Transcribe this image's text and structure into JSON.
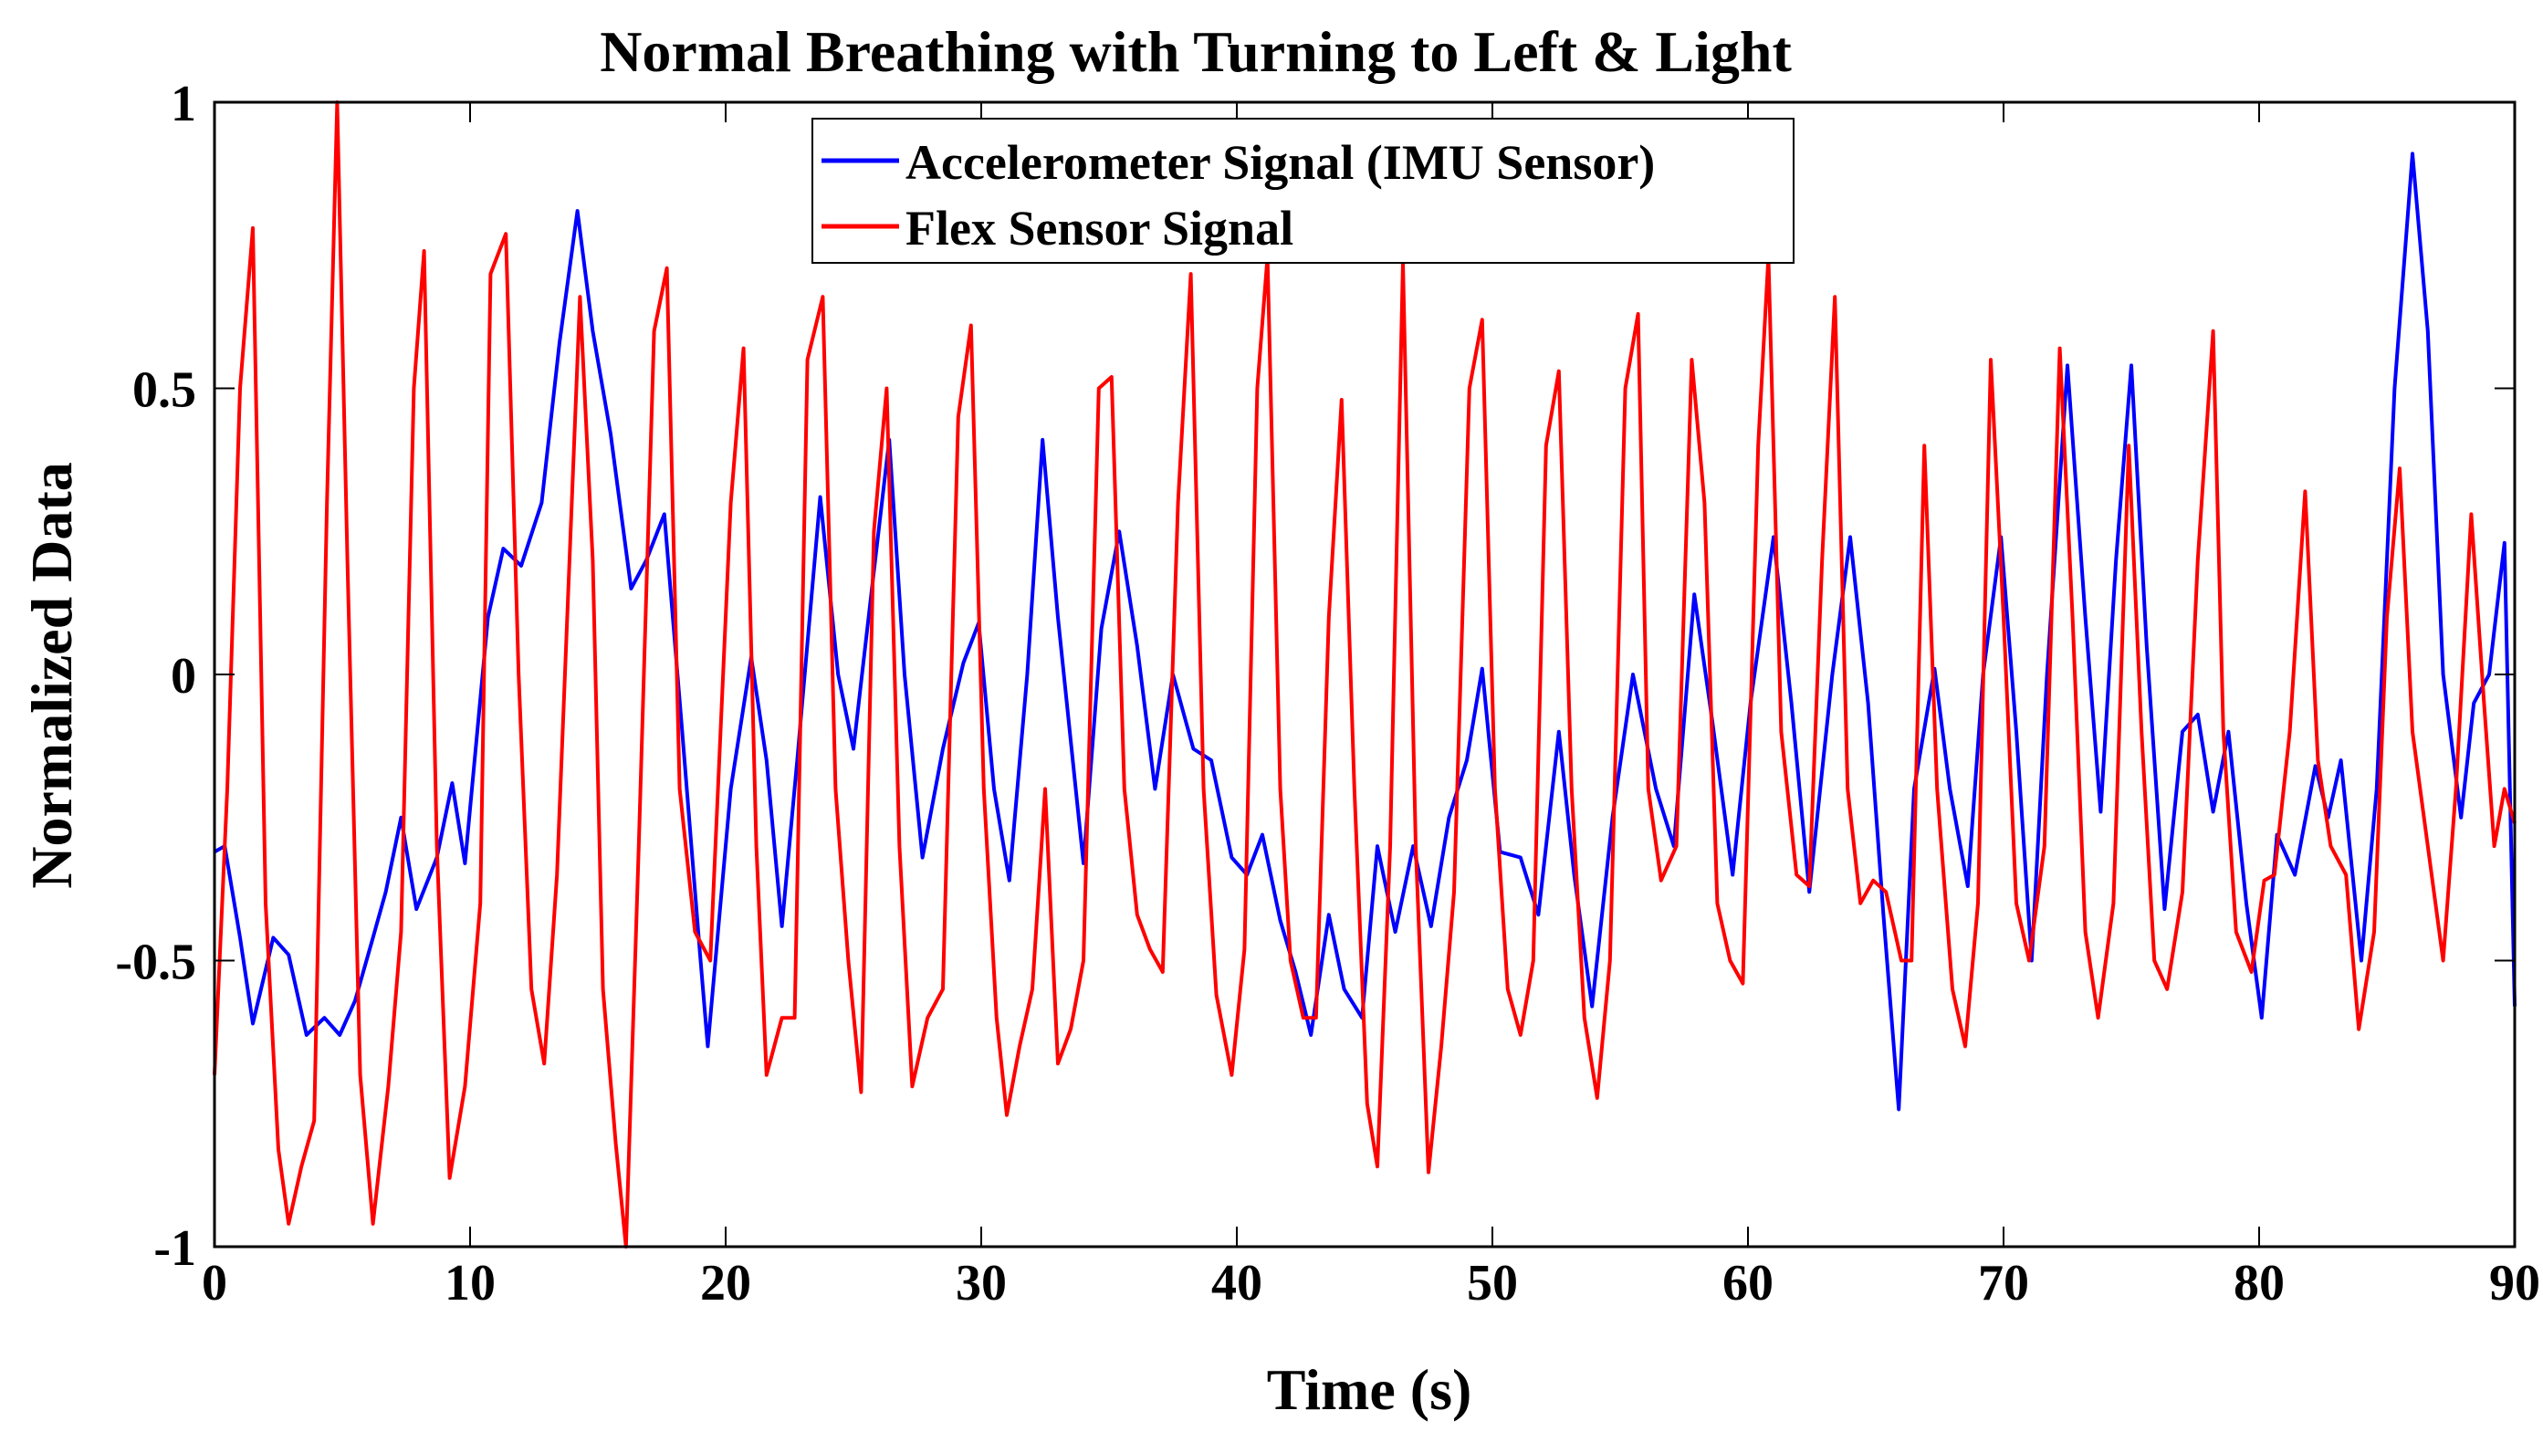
{
  "chart_data": {
    "type": "line",
    "title": "Normal Breathing with Turning to Left & Light",
    "xlabel": "Time (s)",
    "ylabel": "Normalized Data",
    "xlim": [
      0,
      90
    ],
    "ylim": [
      -1,
      1
    ],
    "xticks": [
      0,
      10,
      20,
      30,
      40,
      50,
      60,
      70,
      80,
      90
    ],
    "xtick_labels": [
      "0",
      "10",
      "20",
      "30",
      "40",
      "50",
      "60",
      "70",
      "80",
      "90"
    ],
    "yticks": [
      -1,
      -0.5,
      0,
      0.5,
      1
    ],
    "ytick_labels": [
      "-1",
      "-0.5",
      "0",
      "0.5",
      "1"
    ],
    "grid": false,
    "legend_position": "top-center",
    "series": [
      {
        "name": "Accelerometer Signal (IMU Sensor)",
        "color": "#0000ff",
        "points": [
          [
            0,
            -0.31
          ],
          [
            0.4,
            -0.3
          ],
          [
            1.0,
            -0.46
          ],
          [
            1.5,
            -0.61
          ],
          [
            2.3,
            -0.46
          ],
          [
            2.9,
            -0.49
          ],
          [
            3.6,
            -0.63
          ],
          [
            4.3,
            -0.6
          ],
          [
            4.9,
            -0.63
          ],
          [
            5.5,
            -0.57
          ],
          [
            6.2,
            -0.46
          ],
          [
            6.7,
            -0.38
          ],
          [
            7.3,
            -0.25
          ],
          [
            7.9,
            -0.41
          ],
          [
            8.7,
            -0.32
          ],
          [
            9.3,
            -0.19
          ],
          [
            9.8,
            -0.33
          ],
          [
            10.7,
            0.1
          ],
          [
            11.3,
            0.22
          ],
          [
            12.0,
            0.19
          ],
          [
            12.8,
            0.3
          ],
          [
            13.5,
            0.58
          ],
          [
            14.2,
            0.81
          ],
          [
            14.8,
            0.6
          ],
          [
            15.5,
            0.42
          ],
          [
            16.3,
            0.15
          ],
          [
            16.9,
            0.2
          ],
          [
            17.6,
            0.28
          ],
          [
            18.3,
            -0.1
          ],
          [
            19.0,
            -0.49
          ],
          [
            19.3,
            -0.65
          ],
          [
            20.2,
            -0.2
          ],
          [
            21.0,
            0.03
          ],
          [
            21.6,
            -0.15
          ],
          [
            22.2,
            -0.44
          ],
          [
            22.8,
            -0.15
          ],
          [
            23.7,
            0.31
          ],
          [
            24.4,
            0.0
          ],
          [
            25.0,
            -0.13
          ],
          [
            25.8,
            0.18
          ],
          [
            26.4,
            0.41
          ],
          [
            27.0,
            0.0
          ],
          [
            27.7,
            -0.32
          ],
          [
            28.5,
            -0.13
          ],
          [
            29.3,
            0.02
          ],
          [
            29.9,
            0.09
          ],
          [
            30.5,
            -0.2
          ],
          [
            31.1,
            -0.36
          ],
          [
            31.8,
            0.0
          ],
          [
            32.4,
            0.41
          ],
          [
            33.0,
            0.1
          ],
          [
            34.0,
            -0.33
          ],
          [
            34.7,
            0.08
          ],
          [
            35.4,
            0.25
          ],
          [
            36.1,
            0.05
          ],
          [
            36.8,
            -0.2
          ],
          [
            37.5,
            0.0
          ],
          [
            38.3,
            -0.13
          ],
          [
            39.0,
            -0.15
          ],
          [
            39.8,
            -0.32
          ],
          [
            40.4,
            -0.35
          ],
          [
            41.0,
            -0.28
          ],
          [
            41.7,
            -0.43
          ],
          [
            42.3,
            -0.52
          ],
          [
            42.9,
            -0.63
          ],
          [
            43.6,
            -0.42
          ],
          [
            44.2,
            -0.55
          ],
          [
            44.9,
            -0.6
          ],
          [
            45.5,
            -0.3
          ],
          [
            46.2,
            -0.45
          ],
          [
            46.9,
            -0.3
          ],
          [
            47.6,
            -0.44
          ],
          [
            48.3,
            -0.25
          ],
          [
            49.0,
            -0.15
          ],
          [
            49.6,
            0.01
          ],
          [
            50.3,
            -0.31
          ],
          [
            51.1,
            -0.32
          ],
          [
            51.8,
            -0.42
          ],
          [
            52.6,
            -0.1
          ],
          [
            53.2,
            -0.35
          ],
          [
            53.9,
            -0.58
          ],
          [
            54.7,
            -0.25
          ],
          [
            55.5,
            0.0
          ],
          [
            56.4,
            -0.2
          ],
          [
            57.1,
            -0.3
          ],
          [
            57.9,
            0.14
          ],
          [
            58.6,
            -0.08
          ],
          [
            59.4,
            -0.35
          ],
          [
            60.1,
            -0.05
          ],
          [
            61.0,
            0.24
          ],
          [
            61.7,
            -0.05
          ],
          [
            62.4,
            -0.38
          ],
          [
            63.3,
            0.0
          ],
          [
            64.0,
            0.24
          ],
          [
            64.7,
            -0.05
          ],
          [
            65.3,
            -0.42
          ],
          [
            65.9,
            -0.76
          ],
          [
            66.5,
            -0.2
          ],
          [
            67.3,
            0.01
          ],
          [
            67.9,
            -0.2
          ],
          [
            68.6,
            -0.37
          ],
          [
            69.2,
            0.0
          ],
          [
            69.9,
            0.24
          ],
          [
            70.5,
            -0.1
          ],
          [
            71.1,
            -0.5
          ],
          [
            71.7,
            0.0
          ],
          [
            72.5,
            0.54
          ],
          [
            73.2,
            0.1
          ],
          [
            73.8,
            -0.24
          ],
          [
            74.4,
            0.2
          ],
          [
            75.0,
            0.54
          ],
          [
            75.6,
            0.05
          ],
          [
            76.3,
            -0.41
          ],
          [
            77.0,
            -0.1
          ],
          [
            77.6,
            -0.07
          ],
          [
            78.2,
            -0.24
          ],
          [
            78.8,
            -0.1
          ],
          [
            79.5,
            -0.4
          ],
          [
            80.1,
            -0.6
          ],
          [
            80.7,
            -0.28
          ],
          [
            81.4,
            -0.35
          ],
          [
            82.2,
            -0.16
          ],
          [
            82.7,
            -0.25
          ],
          [
            83.2,
            -0.15
          ],
          [
            84.0,
            -0.5
          ],
          [
            84.6,
            -0.2
          ],
          [
            85.3,
            0.5
          ],
          [
            86.0,
            0.91
          ],
          [
            86.6,
            0.6
          ],
          [
            87.2,
            0.0
          ],
          [
            87.9,
            -0.25
          ],
          [
            88.4,
            -0.05
          ],
          [
            89.0,
            0.0
          ],
          [
            89.6,
            0.23
          ],
          [
            90.0,
            -0.58
          ]
        ]
      },
      {
        "name": "Flex Sensor Signal",
        "color": "#ff0000",
        "points": [
          [
            0,
            -0.7
          ],
          [
            0.5,
            -0.2
          ],
          [
            1.0,
            0.5
          ],
          [
            1.5,
            0.78
          ],
          [
            2.0,
            -0.4
          ],
          [
            2.5,
            -0.83
          ],
          [
            2.9,
            -0.96
          ],
          [
            3.4,
            -0.86
          ],
          [
            3.9,
            -0.78
          ],
          [
            4.4,
            0.3
          ],
          [
            4.8,
            1.0
          ],
          [
            5.2,
            0.2
          ],
          [
            5.7,
            -0.7
          ],
          [
            6.2,
            -0.96
          ],
          [
            6.8,
            -0.72
          ],
          [
            7.3,
            -0.45
          ],
          [
            7.8,
            0.5
          ],
          [
            8.2,
            0.74
          ],
          [
            8.7,
            -0.3
          ],
          [
            9.2,
            -0.88
          ],
          [
            9.8,
            -0.72
          ],
          [
            10.4,
            -0.4
          ],
          [
            10.8,
            0.7
          ],
          [
            11.4,
            0.77
          ],
          [
            11.9,
            0.0
          ],
          [
            12.4,
            -0.55
          ],
          [
            12.9,
            -0.68
          ],
          [
            13.4,
            -0.35
          ],
          [
            14.3,
            0.66
          ],
          [
            14.8,
            0.2
          ],
          [
            15.2,
            -0.55
          ],
          [
            15.7,
            -0.82
          ],
          [
            16.1,
            -1.0
          ],
          [
            16.6,
            -0.3
          ],
          [
            17.2,
            0.6
          ],
          [
            17.7,
            0.71
          ],
          [
            18.2,
            -0.2
          ],
          [
            18.8,
            -0.45
          ],
          [
            19.4,
            -0.5
          ],
          [
            20.2,
            0.3
          ],
          [
            20.7,
            0.57
          ],
          [
            21.2,
            -0.3
          ],
          [
            21.6,
            -0.7
          ],
          [
            22.2,
            -0.6
          ],
          [
            22.7,
            -0.6
          ],
          [
            23.2,
            0.55
          ],
          [
            23.8,
            0.66
          ],
          [
            24.3,
            -0.2
          ],
          [
            24.8,
            -0.5
          ],
          [
            25.3,
            -0.73
          ],
          [
            25.8,
            0.25
          ],
          [
            26.3,
            0.5
          ],
          [
            26.8,
            -0.3
          ],
          [
            27.3,
            -0.72
          ],
          [
            27.9,
            -0.6
          ],
          [
            28.5,
            -0.55
          ],
          [
            29.1,
            0.45
          ],
          [
            29.6,
            0.61
          ],
          [
            30.1,
            -0.2
          ],
          [
            30.6,
            -0.6
          ],
          [
            31.0,
            -0.77
          ],
          [
            31.5,
            -0.65
          ],
          [
            32.0,
            -0.55
          ],
          [
            32.5,
            -0.2
          ],
          [
            33.0,
            -0.68
          ],
          [
            33.5,
            -0.62
          ],
          [
            34.0,
            -0.5
          ],
          [
            34.6,
            0.5
          ],
          [
            35.1,
            0.52
          ],
          [
            35.6,
            -0.2
          ],
          [
            36.1,
            -0.42
          ],
          [
            36.6,
            -0.48
          ],
          [
            37.1,
            -0.52
          ],
          [
            37.7,
            0.3
          ],
          [
            38.2,
            0.7
          ],
          [
            38.7,
            -0.2
          ],
          [
            39.2,
            -0.56
          ],
          [
            39.8,
            -0.7
          ],
          [
            40.3,
            -0.48
          ],
          [
            40.8,
            0.5
          ],
          [
            41.2,
            0.73
          ],
          [
            41.7,
            -0.2
          ],
          [
            42.1,
            -0.5
          ],
          [
            42.6,
            -0.6
          ],
          [
            43.1,
            -0.6
          ],
          [
            43.6,
            0.1
          ],
          [
            44.1,
            0.48
          ],
          [
            44.6,
            -0.2
          ],
          [
            45.1,
            -0.75
          ],
          [
            45.5,
            -0.86
          ],
          [
            46.0,
            -0.3
          ],
          [
            46.5,
            0.72
          ],
          [
            47.0,
            -0.3
          ],
          [
            47.5,
            -0.87
          ],
          [
            48.0,
            -0.65
          ],
          [
            48.5,
            -0.38
          ],
          [
            49.1,
            0.5
          ],
          [
            49.6,
            0.62
          ],
          [
            50.1,
            -0.2
          ],
          [
            50.6,
            -0.55
          ],
          [
            51.1,
            -0.63
          ],
          [
            51.6,
            -0.5
          ],
          [
            52.1,
            0.4
          ],
          [
            52.6,
            0.53
          ],
          [
            53.1,
            -0.2
          ],
          [
            53.6,
            -0.6
          ],
          [
            54.1,
            -0.74
          ],
          [
            54.6,
            -0.5
          ],
          [
            55.2,
            0.5
          ],
          [
            55.7,
            0.63
          ],
          [
            56.1,
            -0.2
          ],
          [
            56.6,
            -0.36
          ],
          [
            57.2,
            -0.3
          ],
          [
            57.8,
            0.55
          ],
          [
            58.3,
            0.3
          ],
          [
            58.8,
            -0.4
          ],
          [
            59.3,
            -0.5
          ],
          [
            59.8,
            -0.54
          ],
          [
            60.4,
            0.4
          ],
          [
            60.8,
            0.73
          ],
          [
            61.3,
            -0.1
          ],
          [
            61.9,
            -0.35
          ],
          [
            62.4,
            -0.37
          ],
          [
            62.9,
            0.2
          ],
          [
            63.4,
            0.66
          ],
          [
            63.9,
            -0.2
          ],
          [
            64.4,
            -0.4
          ],
          [
            64.9,
            -0.36
          ],
          [
            65.4,
            -0.38
          ],
          [
            66.0,
            -0.5
          ],
          [
            66.4,
            -0.5
          ],
          [
            66.9,
            0.4
          ],
          [
            67.4,
            -0.2
          ],
          [
            68.0,
            -0.55
          ],
          [
            68.5,
            -0.65
          ],
          [
            69.0,
            -0.4
          ],
          [
            69.5,
            0.55
          ],
          [
            70.0,
            0.1
          ],
          [
            70.5,
            -0.4
          ],
          [
            71.0,
            -0.5
          ],
          [
            71.6,
            -0.3
          ],
          [
            72.2,
            0.57
          ],
          [
            72.7,
            0.1
          ],
          [
            73.2,
            -0.45
          ],
          [
            73.7,
            -0.6
          ],
          [
            74.3,
            -0.4
          ],
          [
            74.9,
            0.4
          ],
          [
            75.4,
            -0.1
          ],
          [
            75.9,
            -0.5
          ],
          [
            76.4,
            -0.55
          ],
          [
            77.0,
            -0.38
          ],
          [
            77.6,
            0.2
          ],
          [
            78.2,
            0.6
          ],
          [
            78.6,
            -0.1
          ],
          [
            79.1,
            -0.45
          ],
          [
            79.7,
            -0.52
          ],
          [
            80.2,
            -0.36
          ],
          [
            80.6,
            -0.35
          ],
          [
            81.2,
            -0.1
          ],
          [
            81.8,
            0.32
          ],
          [
            82.3,
            -0.15
          ],
          [
            82.8,
            -0.3
          ],
          [
            83.4,
            -0.35
          ],
          [
            83.9,
            -0.62
          ],
          [
            84.5,
            -0.45
          ],
          [
            85.0,
            0.1
          ],
          [
            85.5,
            0.36
          ],
          [
            86.0,
            -0.1
          ],
          [
            86.6,
            -0.3
          ],
          [
            87.2,
            -0.5
          ],
          [
            87.7,
            -0.2
          ],
          [
            88.3,
            0.28
          ],
          [
            88.8,
            -0.05
          ],
          [
            89.2,
            -0.3
          ],
          [
            89.6,
            -0.2
          ],
          [
            90.0,
            -0.26
          ]
        ]
      }
    ]
  }
}
